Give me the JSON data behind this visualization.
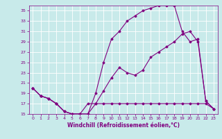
{
  "title": "",
  "xlabel": "Windchill (Refroidissement éolien,°C)",
  "ylabel": "",
  "bg_color": "#c8eaea",
  "line_color": "#800080",
  "grid_color": "#ffffff",
  "xlim": [
    -0.5,
    23.5
  ],
  "ylim": [
    15,
    36
  ],
  "xticks": [
    0,
    1,
    2,
    3,
    4,
    5,
    6,
    7,
    8,
    9,
    10,
    11,
    12,
    13,
    14,
    15,
    16,
    17,
    18,
    19,
    20,
    21,
    22,
    23
  ],
  "yticks": [
    15,
    17,
    19,
    21,
    23,
    25,
    27,
    29,
    31,
    33,
    35
  ],
  "line1_x": [
    0,
    1,
    2,
    3,
    4,
    5,
    6,
    7,
    8,
    9,
    10,
    11,
    12,
    13,
    14,
    15,
    16,
    17,
    18,
    19,
    20,
    21,
    22,
    23
  ],
  "line1_y": [
    20,
    18.5,
    18,
    17,
    15.5,
    15,
    15,
    15,
    17,
    19.5,
    22,
    24,
    23,
    22.5,
    23.5,
    26,
    27,
    28,
    29,
    30.5,
    31,
    29,
    17.5,
    16
  ],
  "line2_x": [
    0,
    1,
    2,
    3,
    4,
    5,
    6,
    7,
    8,
    9,
    10,
    11,
    12,
    13,
    14,
    15,
    16,
    17,
    18,
    19,
    20,
    21,
    22,
    23
  ],
  "line2_y": [
    20,
    18.5,
    18,
    17,
    15.5,
    15,
    15,
    15,
    19,
    25,
    29.5,
    31,
    33,
    34,
    35,
    35.5,
    36,
    36,
    36,
    31,
    29,
    29.5,
    17.5,
    16
  ],
  "line3_x": [
    0,
    1,
    2,
    3,
    4,
    5,
    6,
    7,
    8,
    9,
    10,
    11,
    12,
    13,
    14,
    15,
    16,
    17,
    18,
    19,
    20,
    21,
    22,
    23
  ],
  "line3_y": [
    20,
    18.5,
    18,
    17,
    15.5,
    15,
    15,
    17,
    17,
    17,
    17,
    17,
    17,
    17,
    17,
    17,
    17,
    17,
    17,
    17,
    17,
    17,
    17,
    16
  ]
}
